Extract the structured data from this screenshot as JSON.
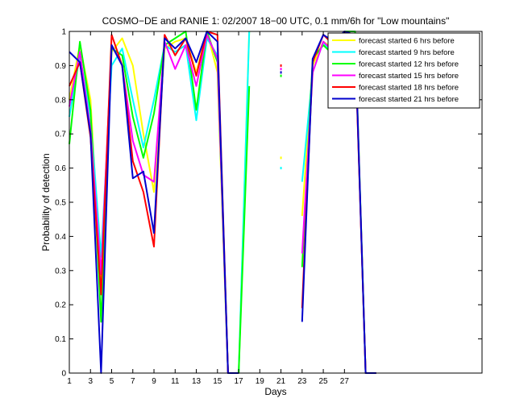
{
  "chart_data": {
    "type": "line",
    "title": "COSMO−DE and RANIE 1: 02/2007 18−00 UTC, 0.1 mm/6h for \"Low mountains\"",
    "xlabel": "Days",
    "ylabel": "Probability of detection",
    "xlim": [
      1,
      40
    ],
    "ylim": [
      0,
      1
    ],
    "xticks": [
      1,
      3,
      5,
      7,
      9,
      11,
      13,
      15,
      17,
      19,
      21,
      23,
      25,
      27
    ],
    "yticks": [
      0,
      0.1,
      0.2,
      0.3,
      0.4,
      0.5,
      0.6,
      0.7,
      0.8,
      0.9,
      1
    ],
    "ytick_labels": [
      "0",
      "0.1",
      "0.2",
      "0.3",
      "0.4",
      "0.5",
      "0.6",
      "0.7",
      "0.8",
      "0.9",
      "1"
    ],
    "grid": false,
    "legend_position": "top-right",
    "series": [
      {
        "name": "forecast started 6 hrs before",
        "color": "#ffff00",
        "segments": [
          [
            [
              1,
              0.8
            ],
            [
              2,
              0.96
            ],
            [
              3,
              0.8
            ],
            [
              4,
              0.25
            ],
            [
              5,
              0.94
            ],
            [
              6,
              0.98
            ],
            [
              7,
              0.9
            ],
            [
              8,
              0.7
            ],
            [
              9,
              0.53
            ],
            [
              10,
              0.95
            ],
            [
              11,
              0.97
            ],
            [
              12,
              0.98
            ],
            [
              13,
              0.88
            ],
            [
              14,
              1.0
            ],
            [
              15,
              0.88
            ],
            [
              16,
              0.0
            ],
            [
              17,
              0.0
            ],
            [
              18,
              1.0
            ]
          ],
          [
            [
              23,
              0.46
            ],
            [
              24,
              0.9
            ],
            [
              25,
              0.97
            ],
            [
              26,
              0.95
            ],
            [
              27,
              1.0
            ],
            [
              28,
              0.99
            ],
            [
              29,
              0.0
            ],
            [
              30,
              0.0
            ]
          ]
        ],
        "points": [
          [
            21,
            0.63
          ]
        ]
      },
      {
        "name": "forecast started 9 hrs before",
        "color": "#00ffff",
        "segments": [
          [
            [
              1,
              0.75
            ],
            [
              2,
              0.93
            ],
            [
              3,
              0.75
            ],
            [
              4,
              0.34
            ],
            [
              5,
              0.9
            ],
            [
              6,
              0.95
            ],
            [
              7,
              0.8
            ],
            [
              8,
              0.66
            ],
            [
              9,
              0.8
            ],
            [
              10,
              0.96
            ],
            [
              11,
              0.94
            ],
            [
              12,
              0.96
            ],
            [
              13,
              0.74
            ],
            [
              14,
              0.98
            ],
            [
              15,
              0.93
            ],
            [
              16,
              0.0
            ],
            [
              17,
              0.0
            ],
            [
              18,
              1.0
            ]
          ],
          [
            [
              23,
              0.56
            ],
            [
              24,
              0.88
            ],
            [
              25,
              0.97
            ],
            [
              26,
              0.92
            ],
            [
              27,
              0.99
            ],
            [
              28,
              0.98
            ],
            [
              29,
              0.0
            ],
            [
              30,
              0.0
            ]
          ]
        ],
        "points": [
          [
            21,
            0.6
          ]
        ]
      },
      {
        "name": "forecast started 12 hrs before",
        "color": "#00ff00",
        "segments": [
          [
            [
              1,
              0.67
            ],
            [
              2,
              0.97
            ],
            [
              3,
              0.77
            ],
            [
              4,
              0.15
            ],
            [
              5,
              0.95
            ],
            [
              6,
              0.93
            ],
            [
              7,
              0.75
            ],
            [
              8,
              0.63
            ],
            [
              9,
              0.76
            ],
            [
              10,
              0.96
            ],
            [
              11,
              0.98
            ],
            [
              12,
              1.0
            ],
            [
              13,
              0.77
            ],
            [
              14,
              1.0
            ],
            [
              15,
              0.91
            ],
            [
              16,
              0.0
            ],
            [
              17,
              0.0
            ],
            [
              18,
              0.84
            ]
          ],
          [
            [
              23,
              0.31
            ],
            [
              24,
              0.92
            ],
            [
              25,
              0.96
            ],
            [
              26,
              0.93
            ],
            [
              27,
              1.0
            ],
            [
              28,
              1.0
            ],
            [
              29,
              0.0
            ],
            [
              30,
              0.0
            ]
          ]
        ],
        "points": [
          [
            21,
            0.87
          ]
        ]
      },
      {
        "name": "forecast started 15 hrs before",
        "color": "#ff00ff",
        "segments": [
          [
            [
              1,
              0.78
            ],
            [
              2,
              0.94
            ],
            [
              3,
              0.71
            ],
            [
              4,
              0.29
            ],
            [
              5,
              0.96
            ],
            [
              6,
              0.9
            ],
            [
              7,
              0.68
            ],
            [
              8,
              0.58
            ],
            [
              9,
              0.56
            ],
            [
              10,
              0.97
            ],
            [
              11,
              0.89
            ],
            [
              12,
              0.96
            ],
            [
              13,
              0.84
            ],
            [
              14,
              0.99
            ],
            [
              15,
              0.92
            ],
            [
              16,
              0.0
            ],
            [
              17,
              0.0
            ]
          ],
          [
            [
              23,
              0.35
            ],
            [
              24,
              0.88
            ],
            [
              25,
              0.97
            ],
            [
              26,
              0.94
            ],
            [
              27,
              0.99
            ],
            [
              28,
              0.98
            ],
            [
              29,
              0.0
            ],
            [
              30,
              0.0
            ]
          ]
        ],
        "points": [
          [
            21,
            0.89
          ]
        ]
      },
      {
        "name": "forecast started 18 hrs before",
        "color": "#ff0000",
        "segments": [
          [
            [
              1,
              0.84
            ],
            [
              2,
              0.91
            ],
            [
              3,
              0.69
            ],
            [
              4,
              0.23
            ],
            [
              5,
              0.99
            ],
            [
              6,
              0.9
            ],
            [
              7,
              0.62
            ],
            [
              8,
              0.53
            ],
            [
              9,
              0.37
            ],
            [
              10,
              0.99
            ],
            [
              11,
              0.93
            ],
            [
              12,
              0.98
            ],
            [
              13,
              0.87
            ],
            [
              14,
              1.0
            ],
            [
              15,
              0.99
            ],
            [
              16,
              0.0
            ],
            [
              17,
              0.0
            ]
          ],
          [
            [
              23,
              0.19
            ],
            [
              24,
              0.91
            ],
            [
              25,
              0.99
            ],
            [
              26,
              0.96
            ],
            [
              27,
              1.0
            ],
            [
              28,
              0.97
            ],
            [
              29,
              0.0
            ],
            [
              30,
              0.0
            ]
          ]
        ],
        "points": [
          [
            21,
            0.9
          ]
        ]
      },
      {
        "name": "forecast started 21 hrs before",
        "color": "#0000cc",
        "segments": [
          [
            [
              1,
              0.94
            ],
            [
              2,
              0.91
            ],
            [
              3,
              0.7
            ],
            [
              4,
              0.0
            ],
            [
              5,
              0.96
            ],
            [
              6,
              0.9
            ],
            [
              7,
              0.57
            ],
            [
              8,
              0.59
            ],
            [
              9,
              0.41
            ],
            [
              10,
              0.98
            ],
            [
              11,
              0.95
            ],
            [
              12,
              0.98
            ],
            [
              13,
              0.91
            ],
            [
              14,
              1.0
            ],
            [
              15,
              0.97
            ],
            [
              16,
              0.0
            ],
            [
              17,
              0.0
            ]
          ],
          [
            [
              23,
              0.15
            ],
            [
              24,
              0.92
            ],
            [
              25,
              0.99
            ],
            [
              26,
              0.97
            ],
            [
              27,
              1.0
            ],
            [
              28,
              0.99
            ],
            [
              29,
              0.0
            ],
            [
              30,
              0.0
            ]
          ]
        ],
        "points": [
          [
            21,
            0.88
          ]
        ]
      }
    ]
  }
}
